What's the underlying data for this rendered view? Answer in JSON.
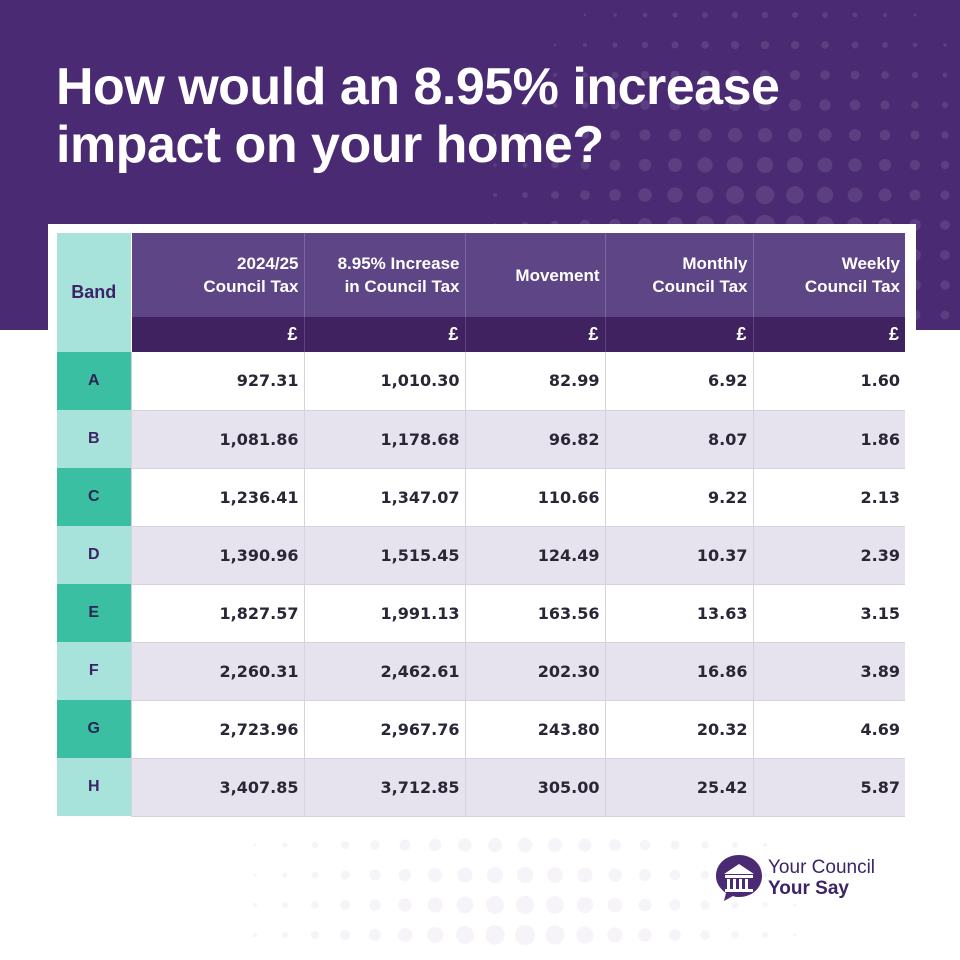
{
  "headline": {
    "line1": "How would an 8.95% increase",
    "line2": "impact on your home?"
  },
  "colors": {
    "purple_dark": "#4a2a72",
    "purple_header": "#5e4585",
    "purple_unit_row": "#3f225f",
    "teal": "#3bbfa3",
    "teal_light": "#a7e3da",
    "row_alt": "#e7e3ee"
  },
  "chart_data": {
    "type": "table",
    "title": "How would an 8.95% increase impact on your home?",
    "band_header": "Band",
    "columns": [
      {
        "line1": "2024/25",
        "line2": "Council Tax",
        "unit": "£"
      },
      {
        "line1": "8.95% Increase",
        "line2": "in Council Tax",
        "unit": "£"
      },
      {
        "line1": "Movement",
        "line2": "",
        "unit": "£"
      },
      {
        "line1": "Monthly",
        "line2": "Council Tax",
        "unit": "£"
      },
      {
        "line1": "Weekly",
        "line2": "Council Tax",
        "unit": "£"
      }
    ],
    "rows": [
      {
        "band": "A",
        "values": [
          "927.31",
          "1,010.30",
          "82.99",
          "6.92",
          "1.60"
        ]
      },
      {
        "band": "B",
        "values": [
          "1,081.86",
          "1,178.68",
          "96.82",
          "8.07",
          "1.86"
        ]
      },
      {
        "band": "C",
        "values": [
          "1,236.41",
          "1,347.07",
          "110.66",
          "9.22",
          "2.13"
        ]
      },
      {
        "band": "D",
        "values": [
          "1,390.96",
          "1,515.45",
          "124.49",
          "10.37",
          "2.39"
        ]
      },
      {
        "band": "E",
        "values": [
          "1,827.57",
          "1,991.13",
          "163.56",
          "13.63",
          "3.15"
        ]
      },
      {
        "band": "F",
        "values": [
          "2,260.31",
          "2,462.61",
          "202.30",
          "16.86",
          "3.89"
        ]
      },
      {
        "band": "G",
        "values": [
          "2,723.96",
          "2,967.76",
          "243.80",
          "20.32",
          "4.69"
        ]
      },
      {
        "band": "H",
        "values": [
          "3,407.85",
          "3,712.85",
          "305.00",
          "25.42",
          "5.87"
        ]
      }
    ]
  },
  "logo": {
    "icon": "town-hall-speech-bubble-icon",
    "line1": "Your Council",
    "line2": "Your Say"
  }
}
